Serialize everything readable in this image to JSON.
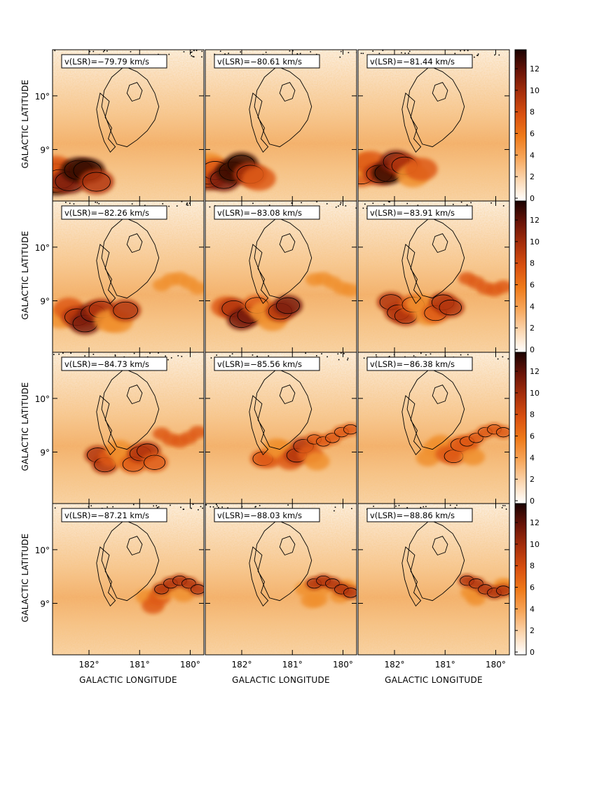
{
  "chart_data": {
    "type": "heatmap",
    "description_panels": "4x3 grid of channel maps with contour overlay and color scale",
    "xlabel": "GALACTIC LONGITUDE",
    "ylabel": "GALACTIC LATITUDE",
    "x_ticks": [
      "182°",
      "181°",
      "180°"
    ],
    "y_ticks": [
      "10°",
      "9°"
    ],
    "colorbar_ticks": [
      "12",
      "10",
      "8",
      "6",
      "4",
      "2",
      "0"
    ],
    "colorbar_range": [
      0,
      13.5
    ],
    "colormap": [
      "#ffffff",
      "#fbd6b0",
      "#f7a65a",
      "#ef7a1a",
      "#d95010",
      "#a8300c",
      "#6a1408",
      "#1a0202"
    ],
    "panels": [
      {
        "label": "v(LSR)=−79.79 km/s",
        "velocity": -79.79
      },
      {
        "label": "v(LSR)=−80.61 km/s",
        "velocity": -80.61
      },
      {
        "label": "v(LSR)=−81.44 km/s",
        "velocity": -81.44
      },
      {
        "label": "v(LSR)=−82.26 km/s",
        "velocity": -82.26
      },
      {
        "label": "v(LSR)=−83.08 km/s",
        "velocity": -83.08
      },
      {
        "label": "v(LSR)=−83.91 km/s",
        "velocity": -83.91
      },
      {
        "label": "v(LSR)=−84.73 km/s",
        "velocity": -84.73
      },
      {
        "label": "v(LSR)=−85.56 km/s",
        "velocity": -85.56
      },
      {
        "label": "v(LSR)=−86.38 km/s",
        "velocity": -86.38
      },
      {
        "label": "v(LSR)=−87.21 km/s",
        "velocity": -87.21
      },
      {
        "label": "v(LSR)=−88.03 km/s",
        "velocity": -88.03
      },
      {
        "label": "v(LSR)=−88.86 km/s",
        "velocity": -88.86
      }
    ]
  }
}
